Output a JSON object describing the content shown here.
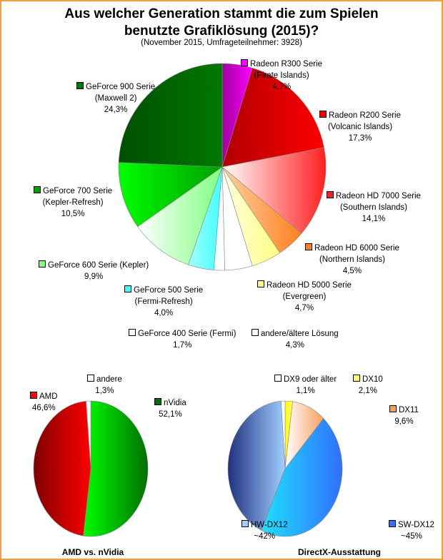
{
  "title_line1": "Aus welcher Generation stammt die zum Spielen",
  "title_line2": "benutzte Grafiklösung (2015)?",
  "subtitle": "(November 2015, Umfrageteilnehmer: 3928)",
  "chart_data": [
    {
      "type": "pie",
      "title": "Aus welcher Generation stammt die zum Spielen benutzte Grafiklösung (2015)?",
      "slices": [
        {
          "name": "Radeon R300 Serie",
          "sub": "(Pirate Islands)",
          "label": "4,7%",
          "value": 4.7,
          "c1": "#a000a0",
          "c2": "#ff00ff"
        },
        {
          "name": "Radeon R200 Serie",
          "sub": "(Volcanic Islands)",
          "label": "17,3%",
          "value": 17.3,
          "c1": "#b00000",
          "c2": "#ff0000"
        },
        {
          "name": "Radeon HD 7000 Serie",
          "sub": "(Southern Islands)",
          "label": "14,1%",
          "value": 14.1,
          "c1": "#ffffff",
          "c2": "#ff2020"
        },
        {
          "name": "Radeon HD 6000 Serie",
          "sub": "(Northern Islands)",
          "label": "4,5%",
          "value": 4.5,
          "c1": "#ffd0a0",
          "c2": "#ff8020"
        },
        {
          "name": "Radeon HD 5000 Serie",
          "sub": "(Evergreen)",
          "label": "4,7%",
          "value": 4.7,
          "c1": "#ffffe0",
          "c2": "#ffff80"
        },
        {
          "name": "andere/ältere Lösung",
          "sub": "",
          "label": "4,3%",
          "value": 4.3,
          "c1": "#ffffff",
          "c2": "#ffffff"
        },
        {
          "name": "GeForce 400 Serie (Fermi)",
          "sub": "",
          "label": "1,7%",
          "value": 1.7,
          "c1": "#f0ffff",
          "c2": "#ffffff"
        },
        {
          "name": "GeForce 500 Serie",
          "sub": "(Fermi-Refresh)",
          "label": "4,0%",
          "value": 4.0,
          "c1": "#a0ffff",
          "c2": "#40ffff"
        },
        {
          "name": "GeForce 600 Serie (Kepler)",
          "sub": "",
          "label": "9,9%",
          "value": 9.9,
          "c1": "#ffffff",
          "c2": "#80ff80"
        },
        {
          "name": "GeForce 700 Serie",
          "sub": "(Kepler-Refresh)",
          "label": "10,5%",
          "value": 10.5,
          "c1": "#00ff00",
          "c2": "#00a000"
        },
        {
          "name": "GeForce 900 Serie",
          "sub": "(Maxwell 2)",
          "label": "24,3%",
          "value": 24.3,
          "c1": "#005000",
          "c2": "#007800"
        }
      ]
    },
    {
      "type": "pie",
      "title": "AMD vs. nVidia",
      "slices": [
        {
          "name": "nVidia",
          "label": "52,1%",
          "value": 52.1,
          "c1": "#00ff00",
          "c2": "#007000"
        },
        {
          "name": "AMD",
          "label": "46,6%",
          "value": 46.6,
          "c1": "#800000",
          "c2": "#ff0000"
        },
        {
          "name": "andere",
          "label": "1,3%",
          "value": 1.3,
          "c1": "#ffffff",
          "c2": "#ffffff"
        }
      ]
    },
    {
      "type": "pie",
      "title": "DirectX-Ausstattung",
      "slices": [
        {
          "name": "DX10",
          "label": "2,1%",
          "value": 2.1,
          "c1": "#ffff00",
          "c2": "#ffff60"
        },
        {
          "name": "DX11",
          "label": "9,6%",
          "value": 9.6,
          "c1": "#ffffff",
          "c2": "#f8a060"
        },
        {
          "name": "SW-DX12",
          "label": "~45%",
          "value": 45,
          "c1": "#20e0ff",
          "c2": "#3070ff"
        },
        {
          "name": "HW-DX12",
          "label": "~42%",
          "value": 42,
          "c1": "#203080",
          "c2": "#a0d0ff"
        },
        {
          "name": "DX9 oder älter",
          "label": "1,1%",
          "value": 1.1,
          "c1": "#ffffff",
          "c2": "#ffffff"
        }
      ]
    }
  ]
}
